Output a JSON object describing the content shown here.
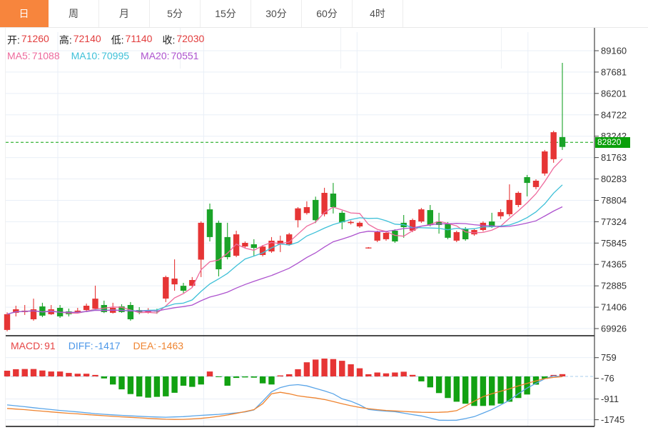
{
  "tabs": {
    "items": [
      {
        "label": "日",
        "active": true
      },
      {
        "label": "周",
        "active": false
      },
      {
        "label": "月",
        "active": false
      },
      {
        "label": "5分",
        "active": false
      },
      {
        "label": "15分",
        "active": false
      },
      {
        "label": "30分",
        "active": false
      },
      {
        "label": "60分",
        "active": false
      },
      {
        "label": "4时",
        "active": false
      }
    ]
  },
  "info": {
    "ohlc": [
      {
        "label": "开:",
        "value": "71260"
      },
      {
        "label": "高:",
        "value": "72140"
      },
      {
        "label": "低:",
        "value": "71140"
      },
      {
        "label": "收:",
        "value": "72030"
      }
    ],
    "ma": [
      {
        "label": "MA5:",
        "value": "71088"
      },
      {
        "label": "MA10:",
        "value": "70995"
      },
      {
        "label": "MA20:",
        "value": "70551"
      }
    ]
  },
  "macd_info": [
    {
      "label": "MACD:",
      "value": "91"
    },
    {
      "label": "DIFF:",
      "value": "-1417"
    },
    {
      "label": "DEA:",
      "value": "-1463"
    }
  ],
  "colors": {
    "tab_active_bg": "#f7853d",
    "up": "#e63535",
    "down": "#1aa328",
    "hist_down": "#12a112",
    "grid": "#e9eff7",
    "zero_line": "#a9cfec",
    "price_line": "#09a409",
    "badge_bg": "#0aa00a",
    "ma5": "#ee6a9d",
    "ma10": "#3ec0d8",
    "ma20": "#ad52ce",
    "diff": "#5aa5e8",
    "dea": "#ef8430",
    "axis_text": "#333333"
  },
  "chart_data": {
    "type": "candlestick+macd",
    "title": "",
    "current_price": 82820,
    "y_ticks": [
      89160,
      87681,
      86201,
      84722,
      83242,
      81763,
      80283,
      78804,
      77324,
      75845,
      74365,
      72885,
      71406,
      69926
    ],
    "y_axis_range": [
      69433,
      90445
    ],
    "x_grid_indices": [
      5.75,
      22.3,
      39.7,
      59.1
    ],
    "candles": [
      [
        69830,
        70920,
        69740,
        71050
      ],
      [
        71020,
        71260,
        70770,
        71510
      ],
      [
        71070,
        71170,
        70870,
        71560
      ],
      [
        70570,
        71260,
        70470,
        72000
      ],
      [
        71460,
        70820,
        70720,
        71710
      ],
      [
        70920,
        71260,
        70870,
        71560
      ],
      [
        71360,
        70770,
        70670,
        71560
      ],
      [
        71120,
        70920,
        70770,
        71310
      ],
      [
        71070,
        71170,
        70970,
        71360
      ],
      [
        71210,
        71510,
        71110,
        71660
      ],
      [
        71310,
        72000,
        71260,
        72900
      ],
      [
        71560,
        71070,
        71000,
        71860
      ],
      [
        71020,
        71360,
        70970,
        71710
      ],
      [
        71460,
        71070,
        71020,
        71610
      ],
      [
        71560,
        70570,
        70470,
        71760
      ],
      [
        71210,
        71070,
        70920,
        71410
      ],
      [
        71070,
        71190,
        70970,
        71340
      ],
      [
        71170,
        71120,
        70950,
        71300
      ],
      [
        72000,
        73490,
        71760,
        73590
      ],
      [
        72990,
        73390,
        72550,
        74720
      ],
      [
        72890,
        72550,
        72400,
        73090
      ],
      [
        72890,
        73290,
        72790,
        73490
      ],
      [
        74700,
        77250,
        73490,
        77350
      ],
      [
        78180,
        76260,
        75960,
        78580
      ],
      [
        77250,
        74030,
        73540,
        77400
      ],
      [
        76260,
        74870,
        74720,
        77250
      ],
      [
        74970,
        76450,
        74870,
        76700
      ],
      [
        75610,
        75860,
        75510,
        75960
      ],
      [
        75760,
        75510,
        74970,
        76110
      ],
      [
        75020,
        75610,
        74920,
        75710
      ],
      [
        75270,
        76010,
        75170,
        76260
      ],
      [
        75760,
        76010,
        75220,
        76360
      ],
      [
        75760,
        76450,
        75660,
        76550
      ],
      [
        77430,
        78250,
        76930,
        78330
      ],
      [
        77920,
        78330,
        77820,
        78740
      ],
      [
        78830,
        77430,
        77230,
        79060
      ],
      [
        77840,
        79320,
        77690,
        79670
      ],
      [
        79270,
        78330,
        77890,
        80010
      ],
      [
        77940,
        77280,
        76800,
        78080
      ],
      [
        77230,
        77310,
        77130,
        77410
      ],
      [
        77000,
        77250,
        76900,
        77350
      ],
      [
        75490,
        75540,
        75460,
        75570
      ],
      [
        76010,
        76600,
        75910,
        76700
      ],
      [
        76110,
        76550,
        76010,
        76650
      ],
      [
        76700,
        75960,
        75860,
        76800
      ],
      [
        77250,
        76950,
        76210,
        77790
      ],
      [
        76700,
        77440,
        76600,
        77540
      ],
      [
        77340,
        78180,
        77240,
        78280
      ],
      [
        78130,
        77100,
        77000,
        78480
      ],
      [
        77340,
        77100,
        76500,
        77940
      ],
      [
        77200,
        76210,
        76110,
        77300
      ],
      [
        76010,
        76600,
        75910,
        76700
      ],
      [
        76850,
        76110,
        76010,
        76950
      ],
      [
        76450,
        76750,
        76350,
        76850
      ],
      [
        76750,
        77250,
        76650,
        77350
      ],
      [
        77340,
        77000,
        76900,
        77940
      ],
      [
        77700,
        77990,
        77500,
        78190
      ],
      [
        77840,
        78830,
        77690,
        79910
      ],
      [
        78480,
        79320,
        78330,
        79420
      ],
      [
        80410,
        80010,
        79080,
        80560
      ],
      [
        79720,
        80160,
        79570,
        80260
      ],
      [
        80660,
        82190,
        80510,
        82290
      ],
      [
        81650,
        83520,
        81400,
        83620
      ],
      [
        83180,
        82500,
        82290,
        88320
      ]
    ],
    "ma_lines": [
      {
        "period": 5,
        "color": "#ee6a9d"
      },
      {
        "period": 10,
        "color": "#3ec0d8"
      },
      {
        "period": 20,
        "color": "#ad52ce"
      }
    ],
    "macd": {
      "y_ticks": [
        759,
        -76,
        -911,
        -1745
      ],
      "y_range": [
        -2016,
        1642
      ],
      "hist": [
        230,
        290,
        300,
        300,
        240,
        200,
        200,
        140,
        110,
        110,
        60,
        -80,
        -325,
        -520,
        -710,
        -810,
        -855,
        -825,
        -805,
        -660,
        -375,
        -420,
        -325,
        200,
        -30,
        -375,
        -60,
        -40,
        -50,
        -280,
        -325,
        40,
        90,
        290,
        570,
        680,
        720,
        700,
        630,
        490,
        330,
        90,
        160,
        125,
        160,
        190,
        65,
        -200,
        -440,
        -670,
        -870,
        -1020,
        -1100,
        -1190,
        -1190,
        -1170,
        -1100,
        -1020,
        -870,
        -730,
        -330,
        -95,
        60,
        91
      ],
      "diff": [
        -1150,
        -1185,
        -1220,
        -1260,
        -1300,
        -1335,
        -1370,
        -1400,
        -1430,
        -1465,
        -1500,
        -1525,
        -1550,
        -1570,
        -1590,
        -1608,
        -1625,
        -1635,
        -1645,
        -1632,
        -1620,
        -1595,
        -1570,
        -1550,
        -1530,
        -1500,
        -1470,
        -1430,
        -1350,
        -1000,
        -620,
        -450,
        -360,
        -330,
        -380,
        -480,
        -585,
        -700,
        -900,
        -1000,
        -1150,
        -1334,
        -1370,
        -1400,
        -1420,
        -1480,
        -1540,
        -1592,
        -1680,
        -1766,
        -1770,
        -1766,
        -1700,
        -1622,
        -1480,
        -1334,
        -1150,
        -960,
        -700,
        -470,
        -280,
        -95,
        20,
        -10
      ],
      "dea": [
        -1290,
        -1315,
        -1340,
        -1370,
        -1400,
        -1430,
        -1460,
        -1485,
        -1510,
        -1535,
        -1560,
        -1585,
        -1610,
        -1630,
        -1650,
        -1670,
        -1690,
        -1708,
        -1725,
        -1735,
        -1730,
        -1715,
        -1690,
        -1655,
        -1610,
        -1555,
        -1490,
        -1420,
        -1340,
        -1100,
        -700,
        -640,
        -700,
        -780,
        -830,
        -870,
        -930,
        -1010,
        -1100,
        -1180,
        -1250,
        -1300,
        -1340,
        -1370,
        -1392,
        -1410,
        -1430,
        -1445,
        -1450,
        -1445,
        -1430,
        -1380,
        -1200,
        -1000,
        -815,
        -700,
        -600,
        -500,
        -380,
        -280,
        -181,
        -90,
        -38,
        -10
      ]
    }
  }
}
